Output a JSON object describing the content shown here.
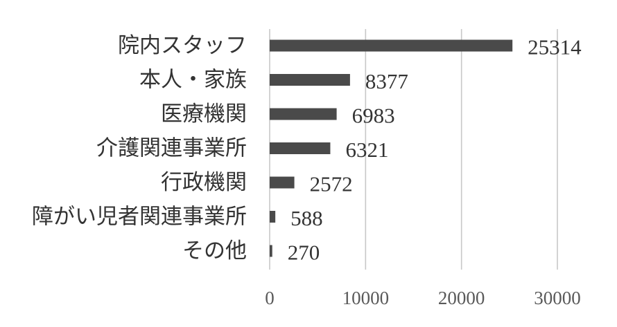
{
  "chart_data": {
    "type": "bar",
    "orientation": "horizontal",
    "categories": [
      "院内スタッフ",
      "本人・家族",
      "医療機関",
      "介護関連事業所",
      "行政機関",
      "障がい児者関連事業所",
      "その他"
    ],
    "values": [
      25314,
      8377,
      6983,
      6321,
      2572,
      588,
      270
    ],
    "xlim": [
      0,
      30000
    ],
    "xticks": [
      0,
      10000,
      20000,
      30000
    ],
    "grid": "vertical",
    "legend": "none",
    "bar_color": "#4a4a4a",
    "grid_color": "#c8c8c8",
    "text_color": "#333333"
  }
}
